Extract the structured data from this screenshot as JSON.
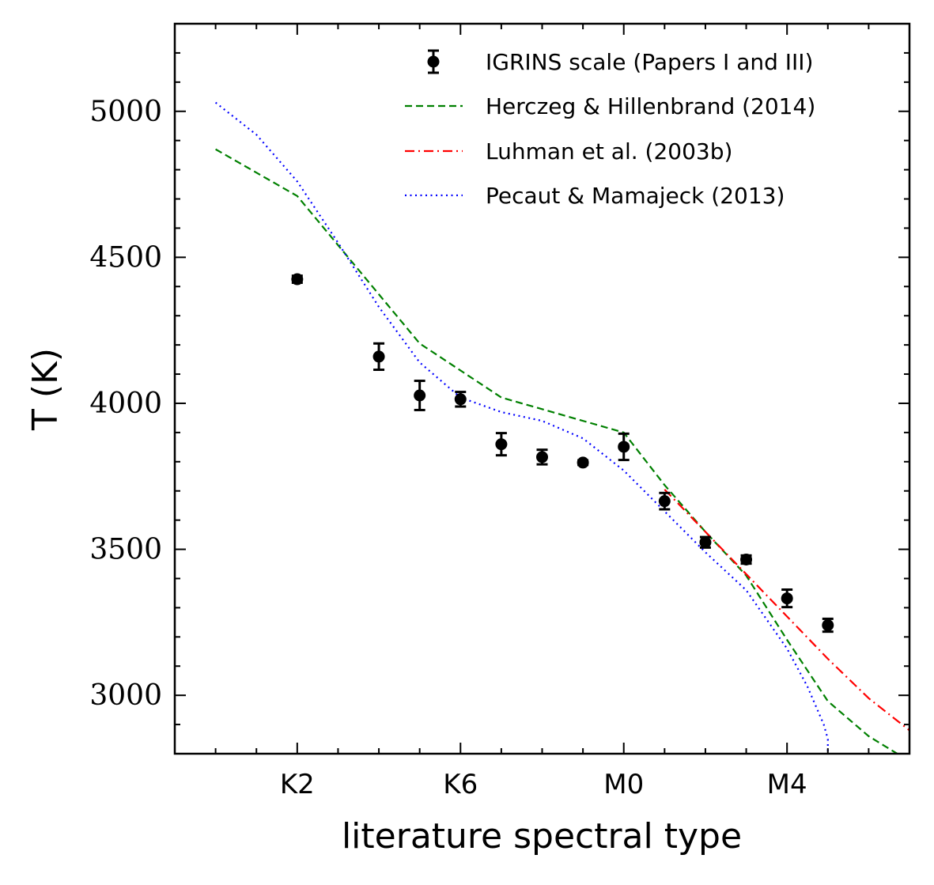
{
  "chart_data": {
    "type": "scatter",
    "title": "",
    "xlabel": "literature spectral type",
    "ylabel": "T (K)",
    "xlim": [
      -1,
      17
    ],
    "ylim": [
      2800,
      5300
    ],
    "grid": false,
    "legend_position": "top-right",
    "x_ticks": [
      {
        "value": 2,
        "label": "K2"
      },
      {
        "value": 6,
        "label": "K6"
      },
      {
        "value": 10,
        "label": "M0"
      },
      {
        "value": 14,
        "label": "M4"
      }
    ],
    "y_ticks": [
      3000,
      3500,
      4000,
      4500,
      5000
    ],
    "series": [
      {
        "name": "IGRINS scale (Papers I and III)",
        "kind": "errorbar",
        "color": "#000000",
        "x": [
          2,
          4,
          5,
          6,
          7,
          8,
          9,
          10,
          11,
          12,
          13,
          14,
          15
        ],
        "y": [
          4425,
          4160,
          4027,
          4014,
          3860,
          3816,
          3797,
          3851,
          3665,
          3524,
          3465,
          3332,
          3240
        ],
        "yerr": [
          12,
          45,
          50,
          25,
          38,
          25,
          8,
          45,
          28,
          18,
          14,
          30,
          22
        ]
      },
      {
        "name": "Herczeg & Hillenbrand (2014)",
        "kind": "line",
        "style": "dashed",
        "color": "#008000",
        "x": [
          0,
          2,
          5,
          7,
          10,
          11,
          12,
          13,
          14,
          15,
          16,
          16.7
        ],
        "y": [
          4870,
          4710,
          4205,
          4020,
          3900,
          3720,
          3560,
          3410,
          3190,
          2980,
          2860,
          2800
        ]
      },
      {
        "name": "Luhman et al. (2003b)",
        "kind": "line",
        "style": "dashdot",
        "color": "#ff0000",
        "x": [
          11,
          12,
          13,
          14,
          15,
          16,
          17
        ],
        "y": [
          3705,
          3560,
          3415,
          3270,
          3125,
          2990,
          2880
        ]
      },
      {
        "name": "Pecaut & Mamajeck (2013)",
        "kind": "line",
        "style": "dotted",
        "color": "#0000ff",
        "x": [
          0,
          1,
          2,
          3,
          4,
          5,
          6,
          7,
          8,
          9,
          10,
          11,
          12,
          13,
          14,
          14.5,
          14.9,
          15,
          15
        ],
        "y": [
          5030,
          4920,
          4760,
          4550,
          4330,
          4140,
          4020,
          3970,
          3940,
          3880,
          3770,
          3630,
          3490,
          3360,
          3160,
          3030,
          2900,
          2850,
          2800
        ]
      }
    ]
  }
}
